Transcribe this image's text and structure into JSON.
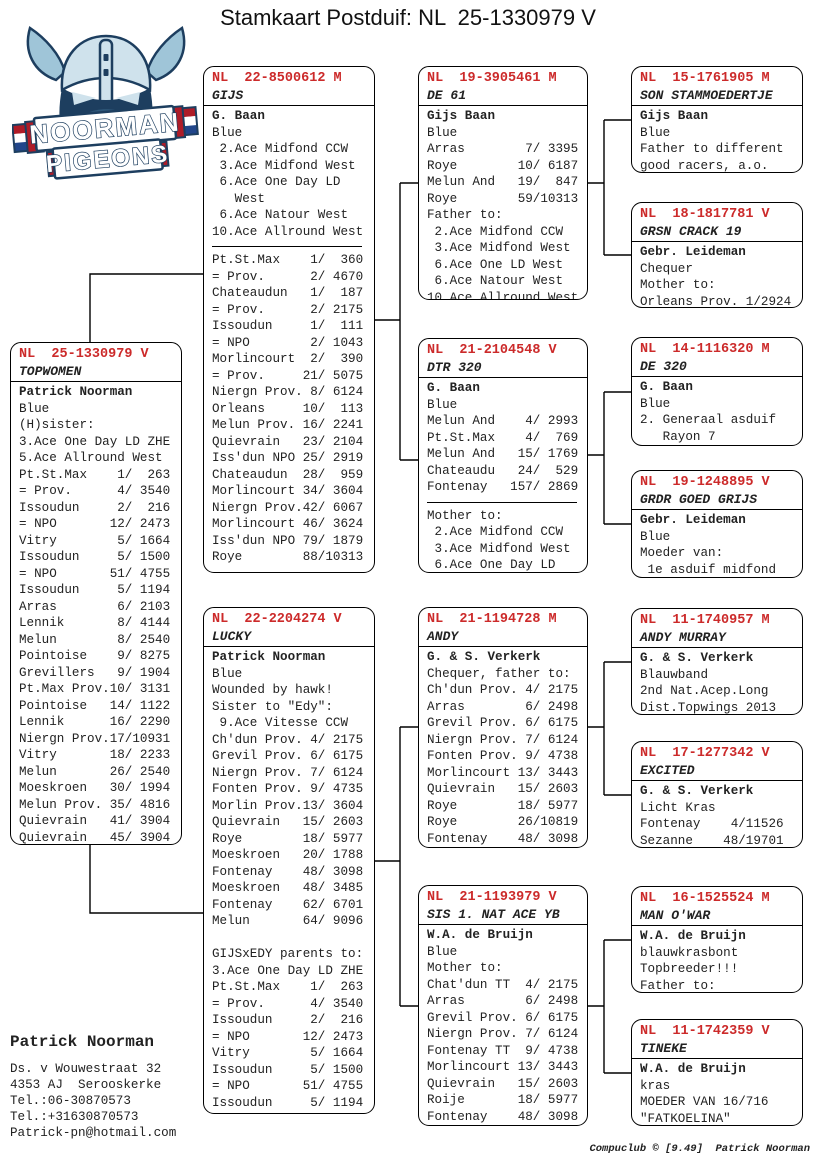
{
  "title": "Stamkaart Postduif: NL  25-1330979 V",
  "logo": {
    "line1": "NOORMAN",
    "line2": "PIGEONS"
  },
  "colors": {
    "ring_red": "#cc2a2a",
    "ink": "#222222",
    "navy": "#1d3e5f",
    "light_blue": "#9fc5d8",
    "helmet": "#cfe2ec",
    "flag_red": "#ae1c28",
    "flag_blue": "#21468b"
  },
  "boxes": [
    {
      "ring": "NL  25-1330979 V",
      "name": "TOPWOMEN",
      "lines": [
        "*Patrick Noorman",
        "Blue",
        "(H)sister:",
        "3.Ace One Day LD ZHE",
        "5.Ace Allround West",
        "Pt.St.Max    1/  263",
        "= Prov.      4/ 3540",
        "Issoudun     2/  216",
        "= NPO       12/ 2473",
        "Vitry        5/ 1664",
        "Issoudun     5/ 1500",
        "= NPO       51/ 4755",
        "Issoudun     5/ 1194",
        "Arras        6/ 2103",
        "Lennik       8/ 4144",
        "Melun        8/ 2540",
        "Pointoise    9/ 8275",
        "Grevillers   9/ 1904",
        "Pt.Max Prov.10/ 3131",
        "Pointoise   14/ 1122",
        "Lennik      16/ 2290",
        "Niergn Prov.17/10931",
        "Vitry       18/ 2233",
        "Melun       26/ 2540",
        "Moeskroen   30/ 1994",
        "Melun Prov. 35/ 4816",
        "Quievrain   41/ 3904",
        "Quievrain   45/ 3904"
      ]
    },
    {
      "ring": "NL  22-8500612 M",
      "name": "GIJS",
      "lines": [
        "*G. Baan",
        "Blue",
        " 2.Ace Midfond CCW",
        " 3.Ace Midfond West",
        " 6.Ace One Day LD",
        "   West",
        " 6.Ace Natour West",
        "10.Ace Allround West",
        "---",
        "Pt.St.Max    1/  360",
        "= Prov.      2/ 4670",
        "Chateaudun   1/  187",
        "= Prov.      2/ 2175",
        "Issoudun     1/  111",
        "= NPO        2/ 1043",
        "Morlincourt  2/  390",
        "= Prov.     21/ 5075",
        "Niergn Prov. 8/ 6124",
        "Orleans     10/  113",
        "Melun Prov. 16/ 2241",
        "Quievrain   23/ 2104",
        "Iss'dun NPO 25/ 2919",
        "Chateaudun  28/  959",
        "Morlincourt 34/ 3604",
        "Niergn Prov.42/ 6067",
        "Morlincourt 46/ 3624",
        "Iss'dun NPO 79/ 1879",
        "Roye        88/10313"
      ]
    },
    {
      "ring": "NL  22-2204274 V",
      "name": "LUCKY",
      "lines": [
        "*Patrick Noorman",
        "Blue",
        "Wounded by hawk!",
        "Sister to \"Edy\":",
        " 9.Ace Vitesse CCW",
        "Ch'dun Prov. 4/ 2175",
        "Grevil Prov. 6/ 6175",
        "Niergn Prov. 7/ 6124",
        "Fonten Prov. 9/ 4735",
        "Morlin Prov.13/ 3604",
        "Quievrain   15/ 2603",
        "Roye        18/ 5977",
        "Moeskroen   20/ 1788",
        "Fontenay    48/ 3098",
        "Moeskroen   48/ 3485",
        "Fontenay    62/ 6701",
        "Melun       64/ 9096",
        "",
        "GIJSxEDY parents to:",
        "3.Ace One Day LD ZHE",
        "Pt.St.Max    1/  263",
        "= Prov.      4/ 3540",
        "Issoudun     2/  216",
        "= NPO       12/ 2473",
        "Vitry        5/ 1664",
        "Issoudun     5/ 1500",
        "= NPO       51/ 4755",
        "Issoudun     5/ 1194"
      ]
    },
    {
      "ring": "NL  19-3905461 M",
      "name": "DE 61",
      "lines": [
        "*Gijs Baan",
        "Blue",
        "Arras        7/ 3395",
        "Roye        10/ 6187",
        "Melun And   19/  847",
        "Roye        59/10313",
        "Father to:",
        " 2.Ace Midfond CCW",
        " 3.Ace Midfond West",
        " 6.Ace One LD West",
        " 6.Ace Natour West",
        "10.Ace Allround West"
      ]
    },
    {
      "ring": "NL  21-2104548 V",
      "name": "DTR 320",
      "lines": [
        "*G. Baan",
        "Blue",
        "Melun And    4/ 2993",
        "Pt.St.Max    4/  769",
        "Melun And   15/ 1769",
        "Chateaudu   24/  529",
        "Fontenay   157/ 2869",
        "---",
        "Mother to:",
        " 2.Ace Midfond CCW",
        " 3.Ace Midfond West",
        " 6.Ace One Day LD"
      ]
    },
    {
      "ring": "NL  21-1194728 M",
      "name": "ANDY",
      "lines": [
        "*G. & S. Verkerk",
        "Chequer, father to:",
        "Ch'dun Prov. 4/ 2175",
        "Arras        6/ 2498",
        "Grevil Prov. 6/ 6175",
        "Niergn Prov. 7/ 6124",
        "Fonten Prov. 9/ 4738",
        "Morlincourt 13/ 3443",
        "Quievrain   15/ 2603",
        "Roye        18/ 5977",
        "Roye        26/10819",
        "Fontenay    48/ 3098"
      ]
    },
    {
      "ring": "NL  21-1193979 V",
      "name": "SIS 1. NAT ACE YB",
      "lines": [
        "*W.A. de Bruijn",
        "Blue",
        "Mother to:",
        "Chat'dun TT  4/ 2175",
        "Arras        6/ 2498",
        "Grevil Prov. 6/ 6175",
        "Niergn Prov. 7/ 6124",
        "Fontenay TT  9/ 4738",
        "Morlincourt 13/ 3443",
        "Quievrain   15/ 2603",
        "Roije       18/ 5977",
        "Fontenay    48/ 3098"
      ]
    },
    {
      "ring": "NL  15-1761905 M",
      "name": "SON STAMMOEDERTJE",
      "lines": [
        "*Gijs Baan",
        "Blue",
        "Father to different",
        "good racers, a.o."
      ]
    },
    {
      "ring": "NL  18-1817781 V",
      "name": "GRSN CRACK 19",
      "lines": [
        "*Gebr. Leideman",
        "Chequer",
        "Mother to:",
        "Orleans Prov. 1/2924"
      ]
    },
    {
      "ring": "NL  14-1116320 M",
      "name": "DE 320",
      "lines": [
        "*G. Baan",
        "Blue",
        "2. Generaal asduif",
        "   Rayon 7"
      ]
    },
    {
      "ring": "NL  19-1248895 V",
      "name": "GRDR GOED GRIJS",
      "lines": [
        "*Gebr. Leideman",
        "Blue",
        "Moeder van:",
        " 1e asduif midfond"
      ]
    },
    {
      "ring": "NL  11-1740957 M",
      "name": "ANDY MURRAY",
      "lines": [
        "*G. & S. Verkerk",
        "Blauwband",
        "2nd Nat.Acep.Long",
        "Dist.Topwings 2013"
      ]
    },
    {
      "ring": "NL  17-1277342 V",
      "name": "EXCITED",
      "lines": [
        "*G. & S. Verkerk",
        "Licht Kras",
        "Fontenay    4/11526",
        "Sezanne    48/19701"
      ]
    },
    {
      "ring": "NL  16-1525524 M",
      "name": "MAN O'WAR",
      "lines": [
        "*W.A. de Bruijn",
        "blauwkrasbont",
        "Topbreeder!!!",
        "Father to:"
      ]
    },
    {
      "ring": "NL  11-1742359 V",
      "name": "TINEKE",
      "lines": [
        "*W.A. de Bruijn",
        "kras",
        "MOEDER VAN 16/716",
        "\"FATKOELINA\""
      ]
    }
  ],
  "footer": {
    "name": "Patrick Noorman",
    "lines": [
      "Ds. v Wouwestraat 32",
      "4353 AJ  Serooskerke",
      "Tel.:06-30870573",
      "Tel.:+31630870573",
      "Patrick-pn@hotmail.com"
    ]
  },
  "credit": "Compuclub © [9.49]  Patrick Noorman"
}
